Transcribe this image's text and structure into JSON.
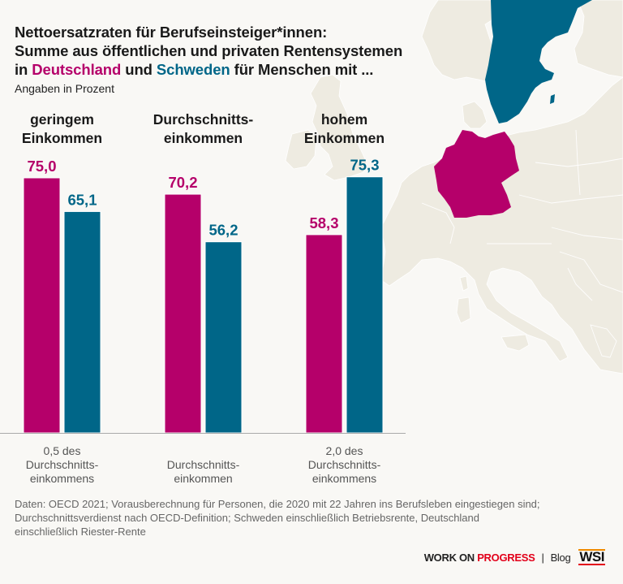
{
  "header": {
    "title_line1": "Nettoersatzraten für Berufseinsteiger*innen:",
    "title_line2": "Summe aus öffentlichen und privaten Rentensystemen",
    "title_line3_prefix": "in ",
    "title_line3_de": "Deutschland",
    "title_line3_mid": " und ",
    "title_line3_se": "Schweden",
    "title_line3_suffix": " für Menschen mit ...",
    "subtitle": "Angaben in Prozent"
  },
  "colors": {
    "germany": "#b5006a",
    "sweden": "#006688",
    "background": "#f9f8f5",
    "land": "#eeebe1",
    "axis": "#aaaaaa"
  },
  "chart_data": {
    "type": "bar",
    "title": "Nettoersatzraten für Berufseinsteiger*innen: Summe aus öffentlichen und privaten Rentensystemen in Deutschland und Schweden für Menschen mit ...",
    "ylabel": "Angaben in Prozent",
    "xlabel": "",
    "ylim": [
      0,
      80
    ],
    "grid": false,
    "group_headers": [
      [
        "geringem",
        "Einkommen"
      ],
      [
        "Durchschnitts-",
        "einkommen"
      ],
      [
        "hohem",
        "Einkommen"
      ]
    ],
    "categories": [
      [
        "0,5 des",
        "Durchschnitts-",
        "einkommens"
      ],
      [
        "Durchschnitts-",
        "einkommen"
      ],
      [
        "2,0 des",
        "Durchschnitts-",
        "einkommens"
      ]
    ],
    "series": [
      {
        "name": "Deutschland",
        "color": "#b5006a",
        "values": [
          75.0,
          70.2,
          58.3
        ],
        "labels": [
          "75,0",
          "70,2",
          "58,3"
        ]
      },
      {
        "name": "Schweden",
        "color": "#006688",
        "values": [
          65.1,
          56.2,
          75.3
        ],
        "labels": [
          "65,1",
          "56,2",
          "75,3"
        ]
      }
    ],
    "legend": "in-title"
  },
  "footnote": {
    "line1": "Daten: OECD 2021; Vorausberechnung für Personen, die 2020 mit 22 Jahren ins Berufsleben eingestiegen sind;",
    "line2": "Durchschnittsverdienst nach OECD-Definition; Schweden einschließlich Betriebsrente, Deutschland",
    "line3": "einschließlich Riester-Rente"
  },
  "branding": {
    "part1": "WORK ON ",
    "part2": "PROGRESS",
    "separator": "|",
    "blog": "Blog",
    "logo": "WSI"
  }
}
